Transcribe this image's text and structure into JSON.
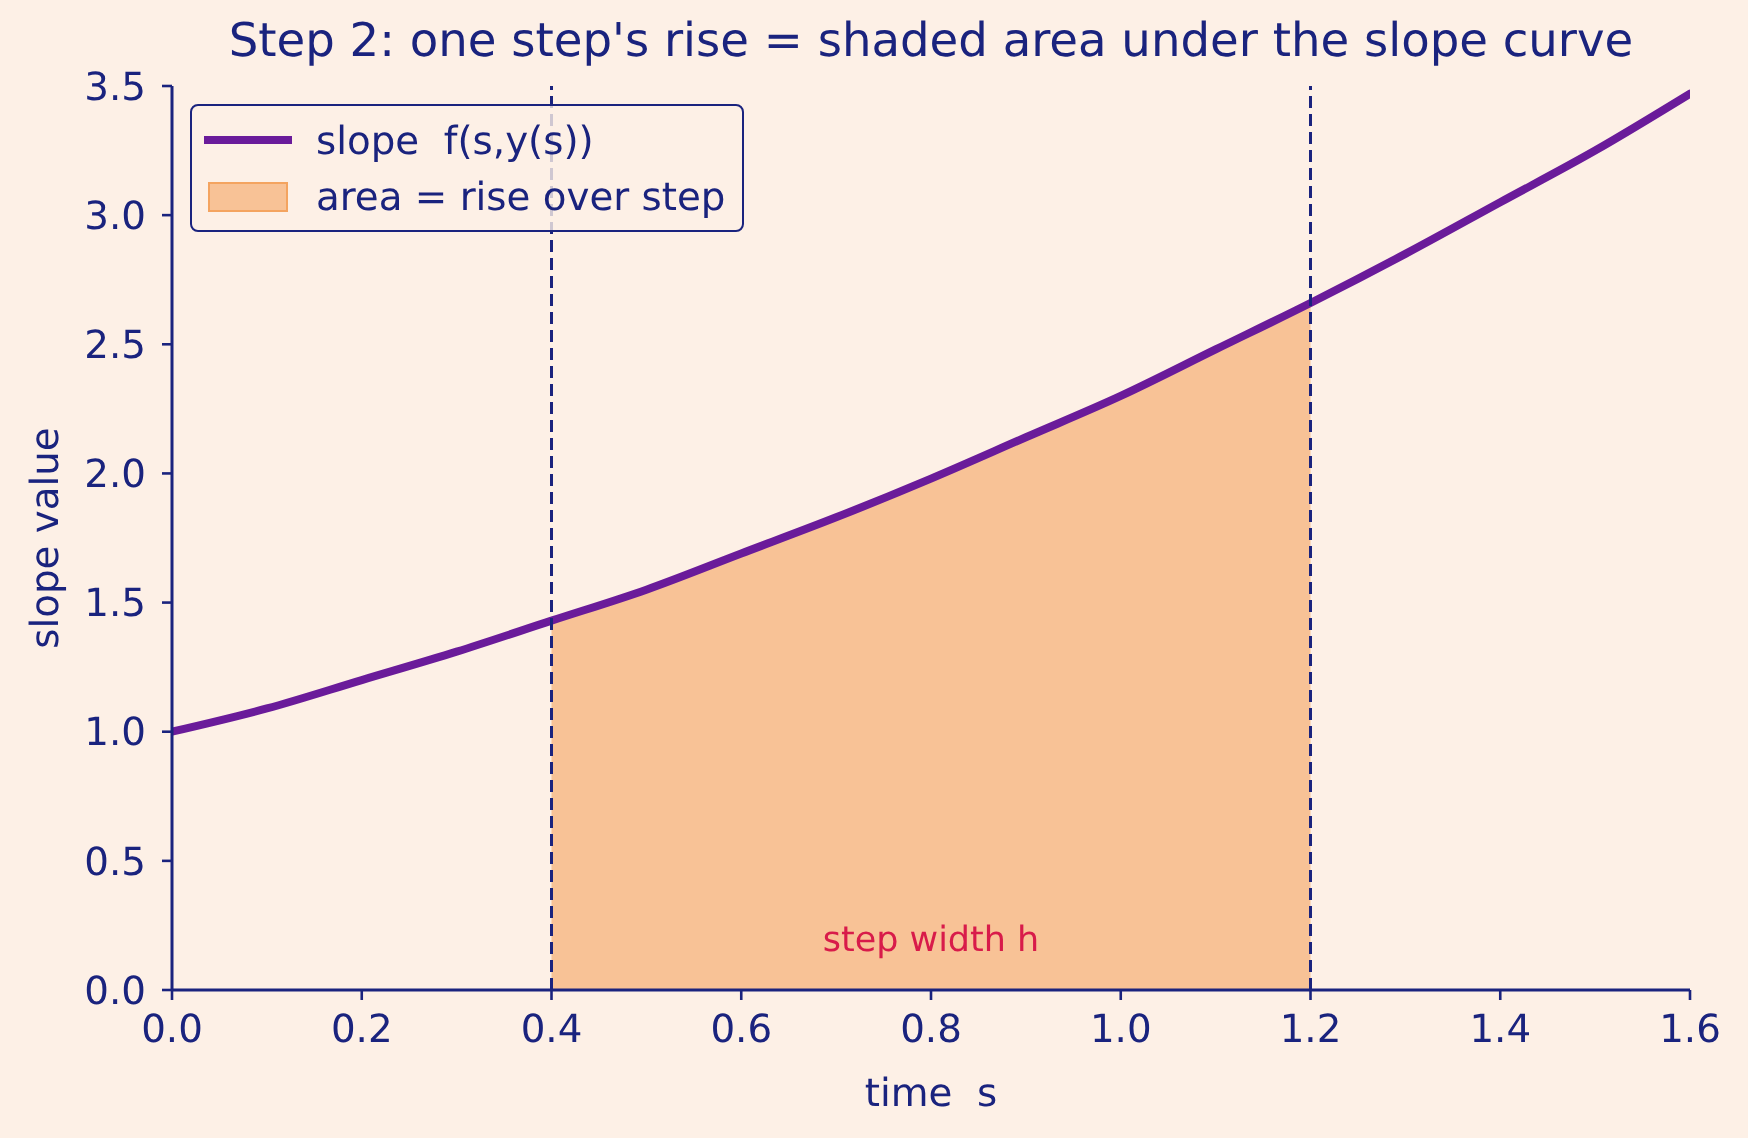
{
  "chart_data": {
    "type": "line",
    "title": "Step 2: one step's rise = shaded area under the slope curve",
    "xlabel": "time  s",
    "ylabel": "slope value",
    "series": [
      {
        "name": "slope  f(s,y(s))",
        "color": "#6a1b9a",
        "x": [
          0,
          0.1,
          0.2,
          0.3,
          0.4,
          0.5,
          0.6,
          0.7,
          0.8,
          0.9,
          1.0,
          1.1,
          1.2,
          1.3,
          1.4,
          1.5,
          1.6
        ],
        "values": [
          1.0,
          1.09,
          1.2,
          1.31,
          1.43,
          1.55,
          1.69,
          1.83,
          1.98,
          2.14,
          2.3,
          2.48,
          2.66,
          2.85,
          3.05,
          3.25,
          3.47
        ]
      },
      {
        "name": "area = rise over step",
        "type": "area",
        "color": "#f8c296",
        "x": [
          0.4,
          0.5,
          0.6,
          0.7,
          0.8,
          0.9,
          1.0,
          1.1,
          1.2
        ],
        "values": [
          1.43,
          1.55,
          1.69,
          1.83,
          1.98,
          2.14,
          2.3,
          2.48,
          2.66
        ]
      }
    ],
    "xlim": [
      0,
      1.6
    ],
    "xticks": [
      {
        "value": 0,
        "label": "0.0"
      },
      0.2,
      0.4,
      0.6,
      0.8,
      {
        "value": 1,
        "label": "1.0"
      },
      1.2,
      1.4,
      1.6
    ],
    "ylim": [
      0,
      3.5
    ],
    "yticks": [
      {
        "value": 0,
        "label": "0.0"
      },
      0.5,
      {
        "value": 1,
        "label": "1.0"
      },
      1.5,
      {
        "value": 2,
        "label": "2.0"
      },
      2.5,
      {
        "value": 3,
        "label": "3.0"
      },
      3.5
    ],
    "ref_lines": [
      {
        "axis": "x",
        "value": 0.4,
        "color": "#1a237e",
        "line_style": "dashed"
      },
      {
        "axis": "x",
        "value": 1.2,
        "color": "#1a237e",
        "line_style": "dashed"
      }
    ],
    "annotations": [
      "step width h"
    ],
    "legend": "top left",
    "marker": "none",
    "line_style": "solid"
  }
}
